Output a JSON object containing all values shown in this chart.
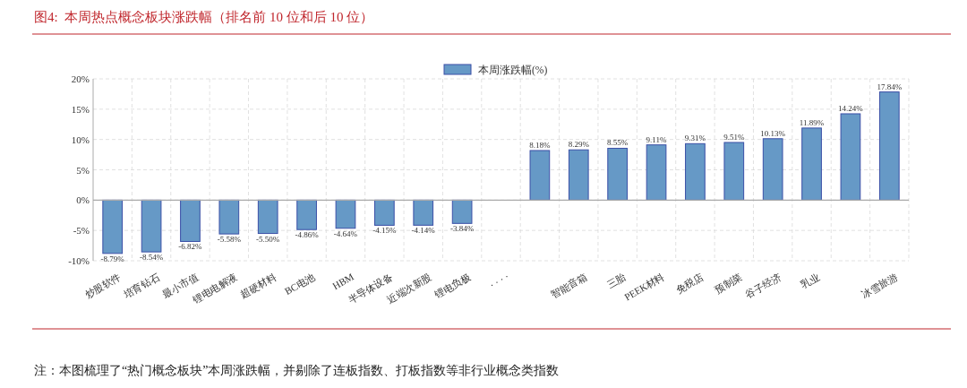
{
  "chart_data": {
    "type": "bar",
    "title": "图4:  本周热点概念板块涨跌幅（排名前 10 位和后 10 位）",
    "categories": [
      "炒股软件",
      "培育钻石",
      "最小市值",
      "锂电电解液",
      "超硬材料",
      "BC电池",
      "HBM",
      "半导体设备",
      "近端次新股",
      "锂电负极",
      "· · · ·",
      null,
      "智能音箱",
      "三胎",
      "PEEK材料",
      "免税店",
      "预制菜",
      "谷子经济",
      "乳业",
      null,
      "冰雪旅游"
    ],
    "series": [
      {
        "name": "本周涨跌幅(%)",
        "color": "#6699c6",
        "values": [
          -8.79,
          -8.54,
          -6.82,
          -5.58,
          -5.5,
          -4.86,
          -4.64,
          -4.15,
          -4.14,
          -3.84,
          null,
          8.18,
          8.29,
          8.55,
          9.11,
          9.31,
          9.51,
          10.13,
          11.89,
          14.24,
          17.84
        ],
        "value_labels": [
          "-8.79%",
          "-8.54%",
          "-6.82%",
          "-5.58%",
          "-5.50%",
          "-4.86%",
          "-4.64%",
          "-4.15%",
          "-4.14%",
          "-3.84%",
          null,
          "8.18%",
          "8.29%",
          "8.55%",
          "9.11%",
          "9.31%",
          "9.51%",
          "10.13%",
          "11.89%",
          "14.24%",
          "17.84%"
        ]
      }
    ],
    "ylim": [
      -10,
      20
    ],
    "yticks": [
      {
        "value": -10,
        "label": "-10%"
      },
      {
        "value": -5,
        "label": "-5%"
      },
      {
        "value": 0,
        "label": "0%"
      },
      {
        "value": 5,
        "label": "5%"
      },
      {
        "value": 10,
        "label": "10%"
      },
      {
        "value": 15,
        "label": "15%"
      },
      {
        "value": 20,
        "label": "20%"
      }
    ],
    "grid": true,
    "legend": "top",
    "annotations": [
      "注：本图梳理了“热门概念板块”本周涨跌幅，并剔除了连板指数、打板指数等非行业概念类指数"
    ]
  }
}
